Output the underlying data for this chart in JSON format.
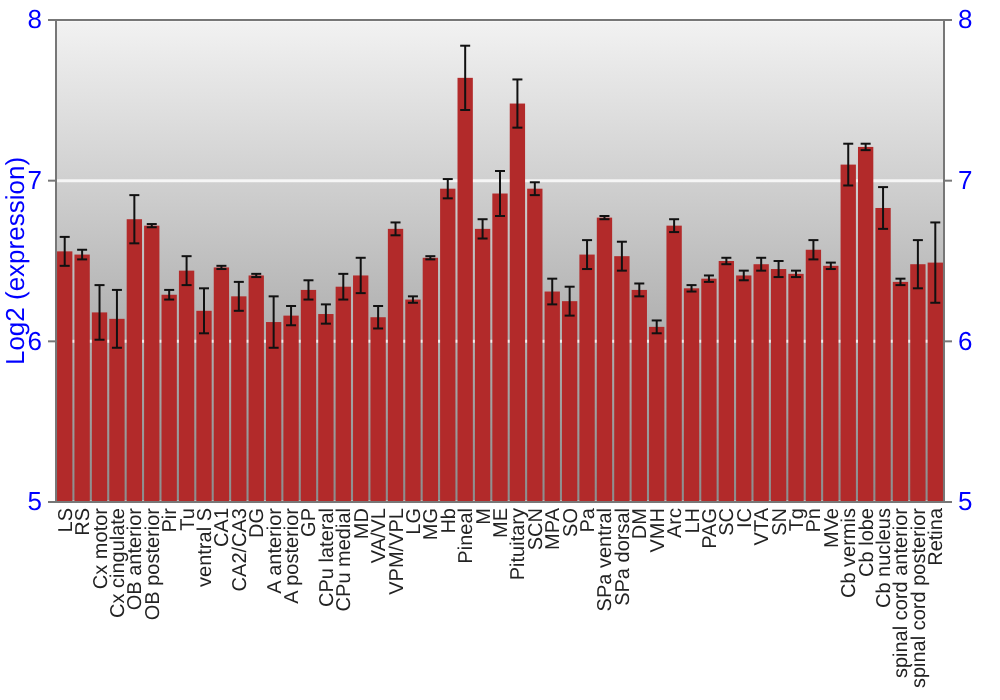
{
  "chart_data": {
    "type": "bar",
    "ylabel": "Log2 (expression)",
    "categories": [
      "LS",
      "RS",
      "Cx motor",
      "Cx cingulate",
      "OB anterior",
      "OB posterior",
      "Pir",
      "Tu",
      "ventral S",
      "CA1",
      "CA2/CA3",
      "DG",
      "A anterior",
      "A posterior",
      "GP",
      "CPu lateral",
      "CPu medial",
      "MD",
      "VA/VL",
      "VPM/VPL",
      "LG",
      "MG",
      "Hb",
      "Pineal",
      "M",
      "ME",
      "Pituitary",
      "SCN",
      "MPA",
      "SO",
      "Pa",
      "SPa ventral",
      "SPa dorsal",
      "DM",
      "VMH",
      "Arc",
      "LH",
      "PAG",
      "SC",
      "IC",
      "VTA",
      "SN",
      "Tg",
      "Pn",
      "MVe",
      "Cb vermis",
      "Cb lobe",
      "Cb nucleus",
      "spinal cord anterior",
      "spinal cord posterior",
      "Retina"
    ],
    "values": [
      6.56,
      6.54,
      6.18,
      6.14,
      6.76,
      6.72,
      6.29,
      6.44,
      6.19,
      6.46,
      6.28,
      6.41,
      6.12,
      6.16,
      6.32,
      6.17,
      6.34,
      6.41,
      6.15,
      6.7,
      6.26,
      6.52,
      6.95,
      7.64,
      6.7,
      6.92,
      7.48,
      6.95,
      6.31,
      6.25,
      6.54,
      6.77,
      6.53,
      6.32,
      6.09,
      6.72,
      6.33,
      6.39,
      6.5,
      6.41,
      6.48,
      6.45,
      6.42,
      6.57,
      6.47,
      7.1,
      7.21,
      6.83,
      6.37,
      6.48,
      6.49
    ],
    "errors": [
      0.09,
      0.03,
      0.17,
      0.18,
      0.15,
      0.01,
      0.03,
      0.09,
      0.14,
      0.01,
      0.09,
      0.01,
      0.16,
      0.06,
      0.06,
      0.06,
      0.08,
      0.11,
      0.07,
      0.04,
      0.02,
      0.01,
      0.06,
      0.2,
      0.06,
      0.14,
      0.15,
      0.04,
      0.08,
      0.09,
      0.09,
      0.01,
      0.09,
      0.04,
      0.04,
      0.04,
      0.02,
      0.02,
      0.02,
      0.03,
      0.04,
      0.05,
      0.02,
      0.06,
      0.02,
      0.13,
      0.02,
      0.13,
      0.02,
      0.15,
      0.25
    ],
    "color": "#b22a2a",
    "ylim": [
      5,
      8
    ],
    "yticks": [
      5,
      6,
      7,
      8
    ],
    "y2lim": [
      5,
      8
    ],
    "y2ticks": [
      5,
      6,
      7,
      8
    ],
    "grid": "y"
  }
}
